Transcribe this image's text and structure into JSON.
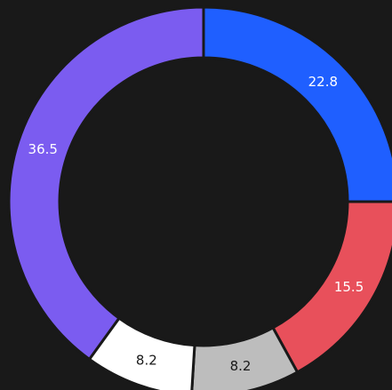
{
  "chart_data": {
    "type": "donut",
    "categories": [
      "22.8",
      "15.5",
      "8.2",
      "8.2",
      "36.5"
    ],
    "values": [
      22.8,
      15.5,
      8.2,
      8.2,
      36.5
    ],
    "colors": [
      "#1f5fff",
      "#e8505b",
      "#bdbdbd",
      "#ffffff",
      "#7b5cf0"
    ]
  }
}
